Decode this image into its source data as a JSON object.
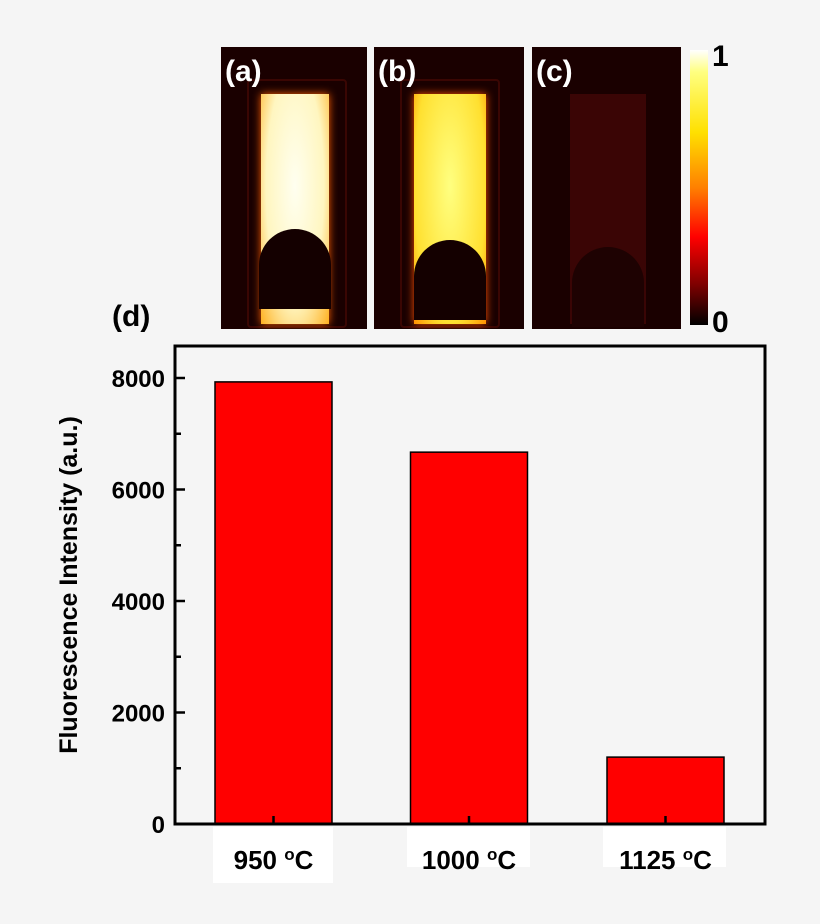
{
  "panels": [
    {
      "label": "(a)"
    },
    {
      "label": "(b)"
    },
    {
      "label": "(c)"
    }
  ],
  "colorbar": {
    "max_label": "1",
    "min_label": "0"
  },
  "chart_label": "(d)",
  "chart_data": {
    "type": "bar",
    "categories": [
      "950 oC",
      "1000 oC",
      "1125 oC"
    ],
    "values": [
      7930,
      6670,
      1200
    ],
    "xlabel": "",
    "ylabel": "Fluorescence Intensity (a.u.)",
    "ylim": [
      0,
      8600
    ],
    "yticks": [
      0,
      2000,
      4000,
      6000,
      8000
    ],
    "bar_color": "#ff0000",
    "grid": false
  }
}
